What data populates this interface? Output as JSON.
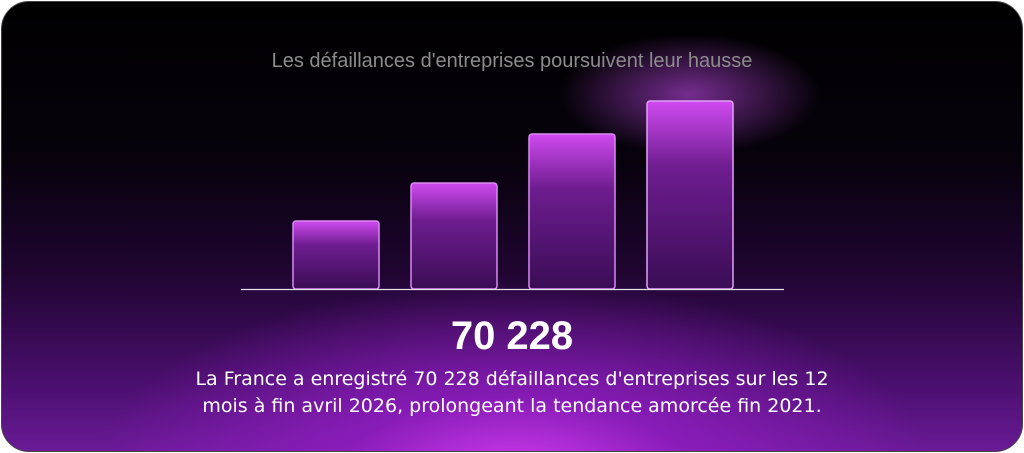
{
  "card": {
    "title": "Les défaillances d'entreprises poursuivent leur hausse",
    "headline": "70 228",
    "description": "La France a enregistré 70 228 défaillances d'entreprises sur les 12 mois à fin avril 2026, prolongeant la tendance amorcée fin 2021."
  }
}
